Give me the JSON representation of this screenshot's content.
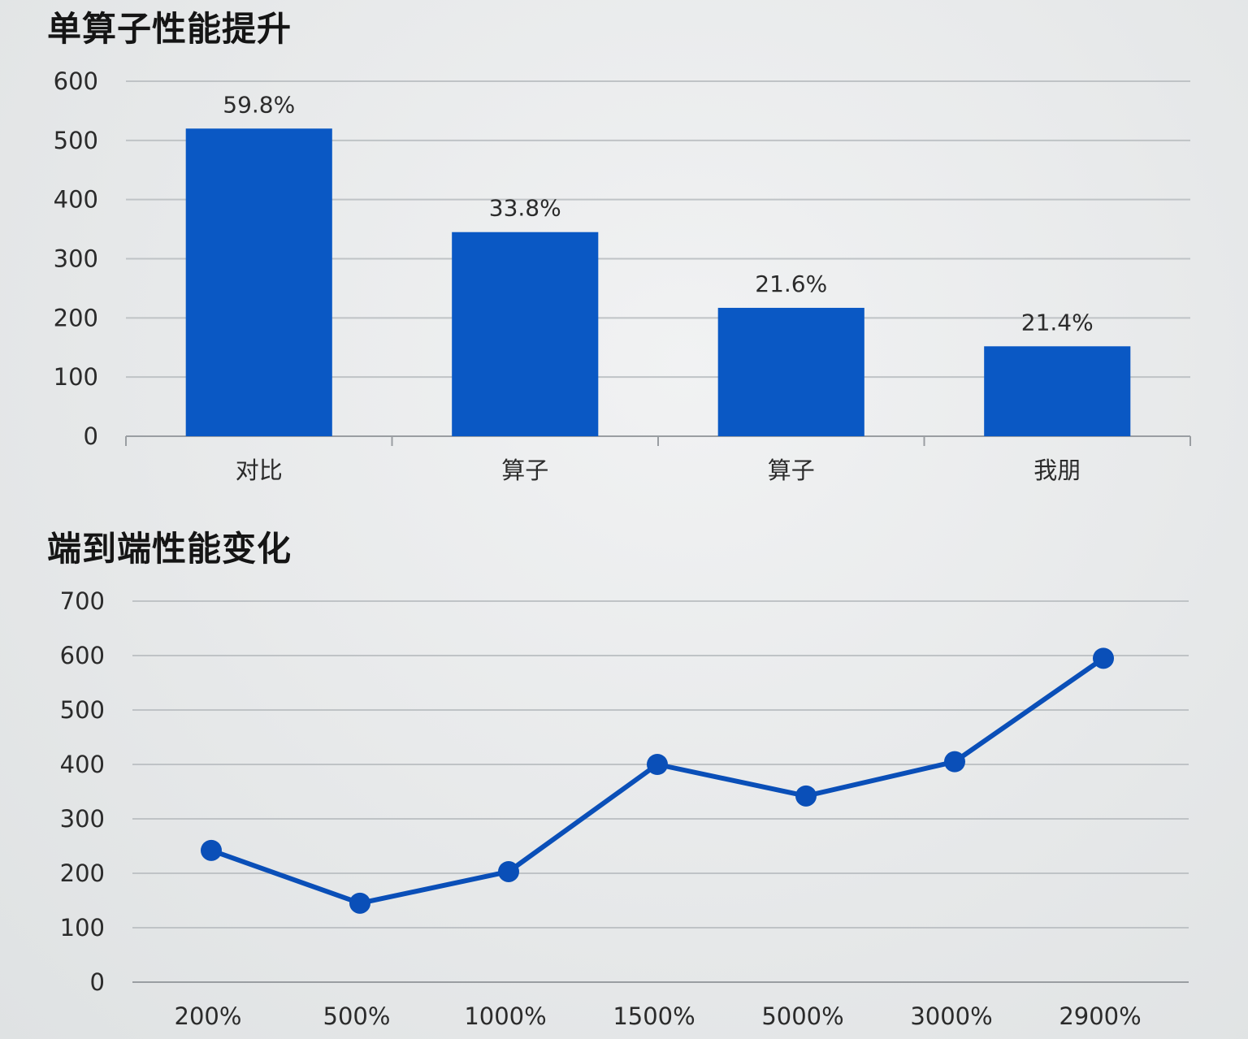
{
  "chart_data": [
    {
      "type": "bar",
      "title": "单算子性能提升",
      "categories": [
        "对比",
        "算子",
        "算子",
        "我朋"
      ],
      "values": [
        520,
        345,
        217,
        152
      ],
      "data_labels": [
        "59.8%",
        "33.8%",
        "21.6%",
        "21.4%"
      ],
      "ylim": [
        0,
        600
      ],
      "yticks": [
        0,
        100,
        200,
        300,
        400,
        500,
        600
      ],
      "grid": true,
      "legend": "none",
      "color": "#0a58c4"
    },
    {
      "type": "line",
      "title": "端到端性能变化",
      "categories": [
        "200%",
        "500%",
        "1000%",
        "1500%",
        "5000%",
        "3000%",
        "2900%"
      ],
      "values": [
        242,
        145,
        203,
        400,
        342,
        405,
        595
      ],
      "ylim": [
        0,
        700
      ],
      "yticks": [
        0,
        100,
        200,
        300,
        400,
        500,
        600,
        700
      ],
      "grid": true,
      "legend": "none",
      "color": "#0a4fb8"
    }
  ]
}
